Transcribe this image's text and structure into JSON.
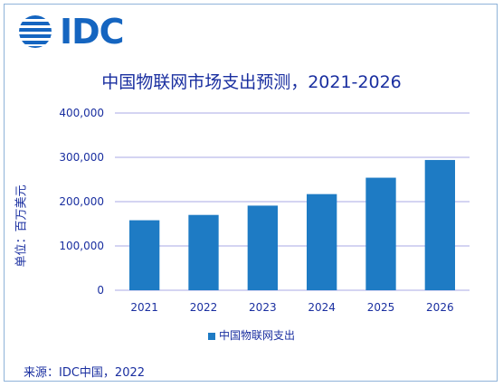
{
  "logo": {
    "text": "IDC"
  },
  "chart_data": {
    "type": "bar",
    "title": "中国物联网市场支出预测，2021-2026",
    "ylabel": "单位：百万美元",
    "xlabel": "",
    "categories": [
      "2021",
      "2022",
      "2023",
      "2024",
      "2025",
      "2026"
    ],
    "series": [
      {
        "name": "中国物联网支出",
        "values": [
          158000,
          170000,
          191000,
          217000,
          254000,
          294000
        ]
      }
    ],
    "ylim": [
      0,
      400000
    ],
    "yticks": [
      "0",
      "100,000",
      "200,000",
      "300,000",
      "400,000"
    ],
    "grid": true,
    "legend_position": "bottom"
  },
  "colors": {
    "bar": "#1e7bc4",
    "text": "#1a2fa0",
    "grid": "#a9a9e6"
  },
  "source": "来源：IDC中国，2022"
}
